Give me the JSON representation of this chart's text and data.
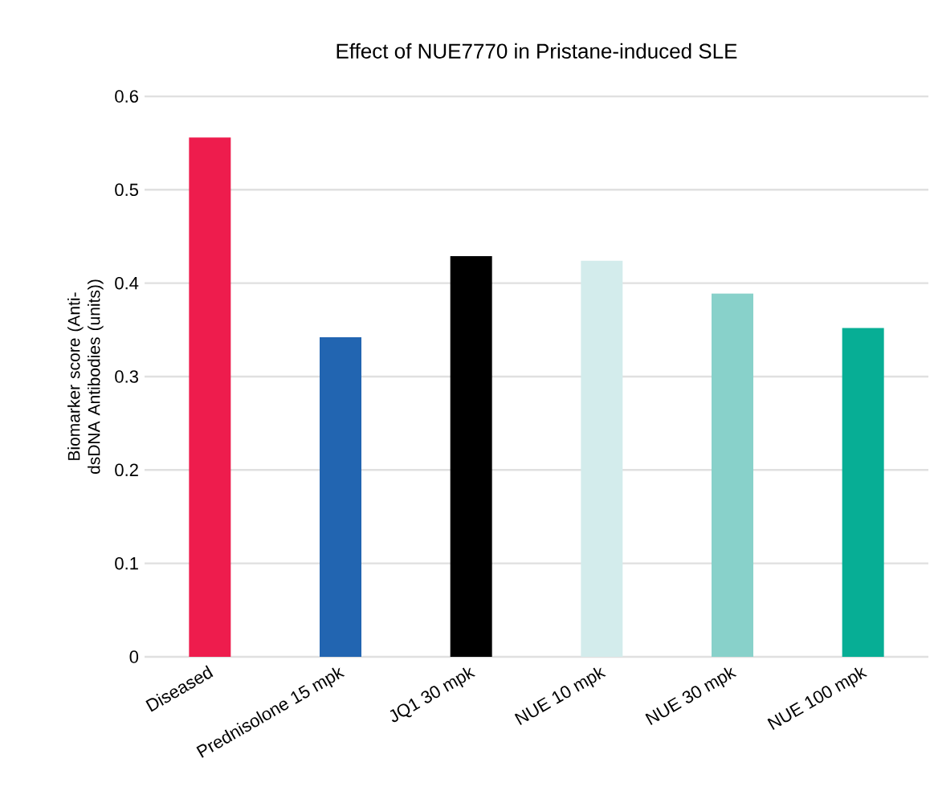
{
  "chart_data": {
    "type": "bar",
    "title": "Effect of NUE7770 in Pristane-induced SLE",
    "ylabel": "Biomarker score (Anti-dsDNA Antibodies (units))",
    "categories": [
      "Diseased",
      "Prednisolone 15 mpk",
      "JQ1 30 mpk",
      "NUE 10 mpk",
      "NUE 30 mpk",
      "NUE 100 mpk"
    ],
    "values": [
      0.556,
      0.342,
      0.429,
      0.424,
      0.389,
      0.352
    ],
    "colors": [
      "#ee1c4d",
      "#2265b1",
      "#000000",
      "#d3ecec",
      "#88d1ca",
      "#07ae95"
    ],
    "ylim": [
      0,
      0.6
    ],
    "yticks": [
      0,
      0.1,
      0.2,
      0.3,
      0.4,
      0.5,
      0.6
    ],
    "grid": "y"
  }
}
